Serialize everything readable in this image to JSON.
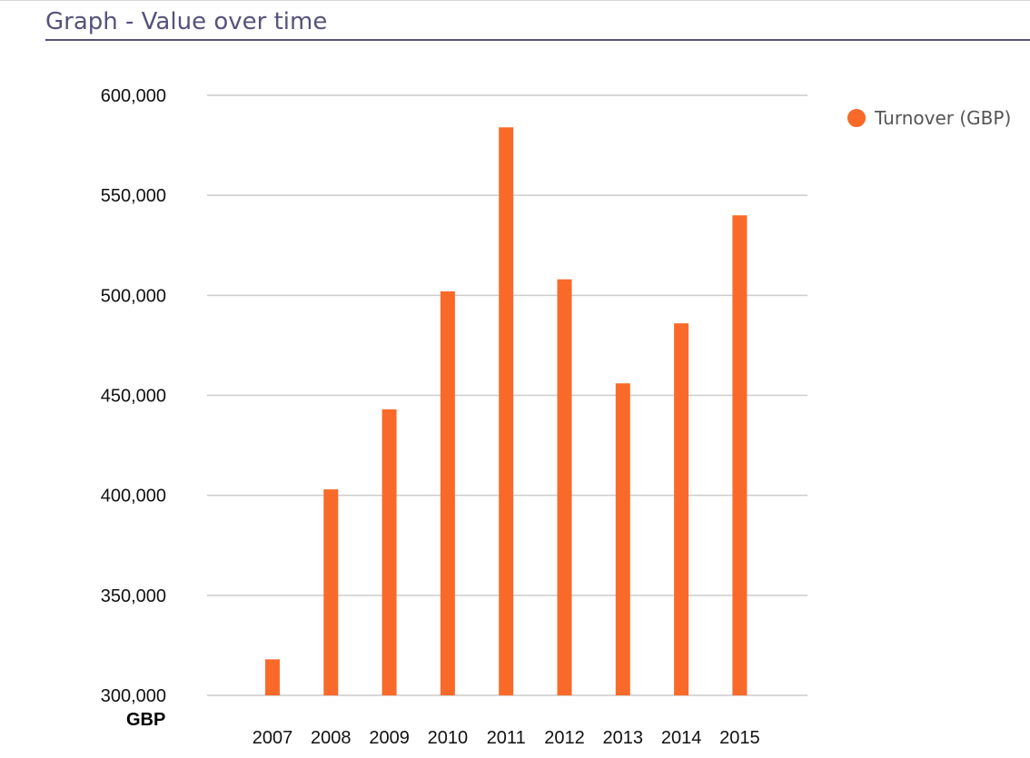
{
  "page": {
    "title": "Graph - Value over time"
  },
  "colors": {
    "title": "#56527a",
    "bar": "#f96a2a",
    "grid": "#cccccc"
  },
  "chart_data": {
    "type": "bar",
    "categories": [
      "2007",
      "2008",
      "2009",
      "2010",
      "2011",
      "2012",
      "2013",
      "2014",
      "2015"
    ],
    "series": [
      {
        "name": "Turnover (GBP)",
        "values": [
          318000,
          403000,
          443000,
          502000,
          584000,
          508000,
          456000,
          486000,
          540000
        ]
      }
    ],
    "ylim": [
      300000,
      600000
    ],
    "yticks": [
      300000,
      350000,
      400000,
      450000,
      500000,
      550000,
      600000
    ],
    "ytick_labels": [
      "300,000",
      "350,000",
      "400,000",
      "450,000",
      "500,000",
      "550,000",
      "600,000"
    ],
    "y_unit": "GBP",
    "grid": true,
    "legend_position": "right"
  }
}
